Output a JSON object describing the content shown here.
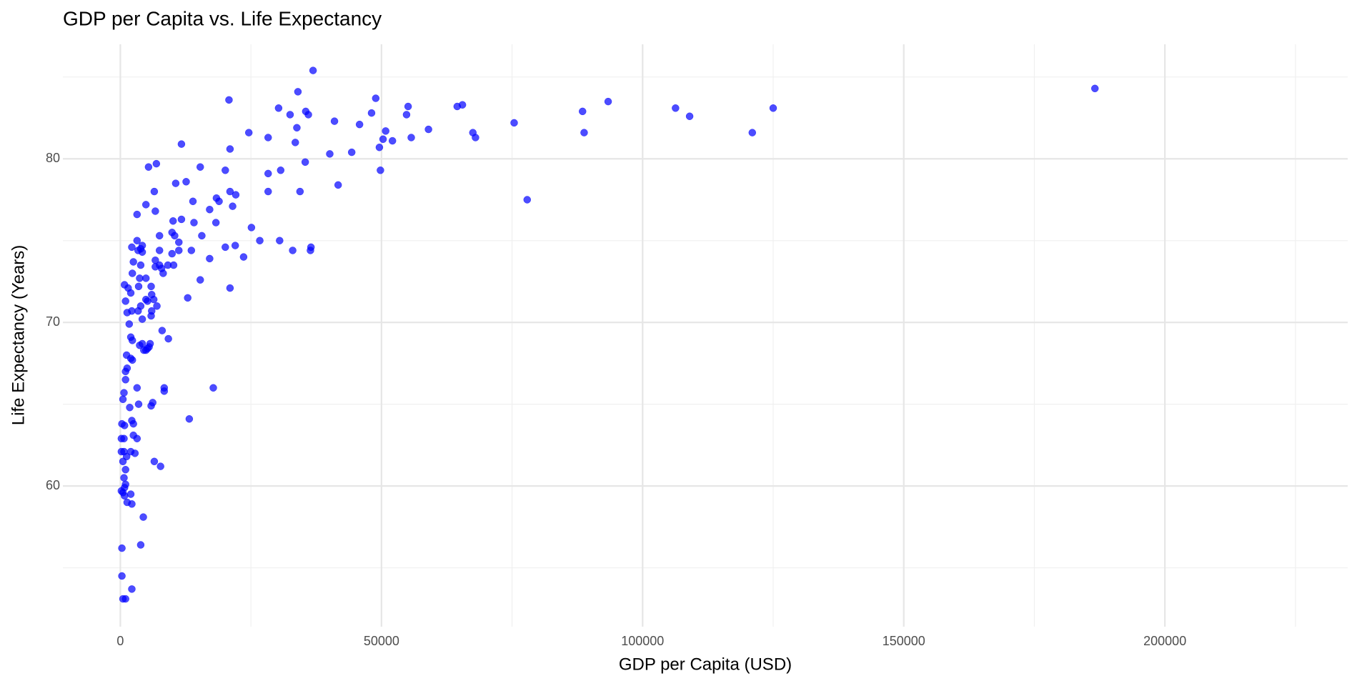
{
  "chart_data": {
    "type": "scatter",
    "title": "GDP per Capita vs. Life Expectancy",
    "x_label": "GDP per Capita (USD)",
    "y_label": "Life Expectancy (Years)",
    "color": "#0000ff",
    "opacity": 0.7,
    "grid": true,
    "xlim": [
      -11000,
      235000
    ],
    "ylim": [
      51.4,
      87.0
    ],
    "xticks": [
      0,
      50000,
      100000,
      150000,
      200000
    ],
    "yticks": [
      60,
      70,
      80
    ],
    "x_minor_ticks": [
      25000,
      75000,
      125000,
      175000,
      225000
    ],
    "y_minor_ticks": [
      55,
      65,
      75,
      85
    ],
    "x": [
      186600,
      121000,
      125000,
      106300,
      109000,
      93400,
      88500,
      88800,
      75400,
      77900,
      67500,
      68000,
      65500,
      64500,
      59000,
      55700,
      55100,
      54800,
      52100,
      50800,
      50300,
      49600,
      49800,
      48900,
      48100,
      45800,
      44300,
      41700,
      41000,
      40100,
      36900,
      36000,
      35500,
      35400,
      34000,
      33800,
      33500,
      34400,
      33000,
      32500,
      36500,
      36400,
      30300,
      30700,
      30500,
      28300,
      28300,
      28300,
      26700,
      25100,
      24600,
      23600,
      20800,
      21000,
      20100,
      21000,
      21500,
      22100,
      22000,
      20100,
      21000,
      18400,
      18900,
      18300,
      17100,
      17100,
      17800,
      15300,
      15600,
      15300,
      13900,
      14100,
      13600,
      12900,
      13200,
      12600,
      11700,
      11700,
      11200,
      11200,
      10600,
      10400,
      10100,
      9900,
      9900,
      10200,
      9200,
      9100,
      8200,
      7500,
      7500,
      7500,
      7900,
      8000,
      8400,
      8400,
      7700,
      6700,
      6700,
      7000,
      6700,
      6500,
      6900,
      5400,
      4900,
      6500,
      6200,
      5900,
      6000,
      6400,
      5900,
      6000,
      5900,
      5700,
      5200,
      5500,
      4900,
      4900,
      4900,
      5200,
      4200,
      4200,
      3900,
      3400,
      3200,
      3200,
      3900,
      3700,
      3500,
      3400,
      3900,
      4200,
      3700,
      4200,
      4500,
      3200,
      3500,
      4400,
      3900,
      2500,
      2200,
      2300,
      2000,
      2200,
      1700,
      2000,
      2300,
      2000,
      2300,
      1800,
      2200,
      2500,
      2500,
      2800,
      3200,
      2000,
      2000,
      2200,
      2200,
      1300,
      800,
      1500,
      1000,
      1300,
      1200,
      1300,
      1000,
      1000,
      700,
      500,
      800,
      300,
      200,
      700,
      700,
      200,
      1200,
      500,
      1000,
      700,
      1000,
      800,
      200,
      500,
      800,
      300,
      300,
      500,
      1000
    ],
    "values": [
      84.3,
      81.6,
      83.1,
      83.1,
      82.6,
      83.5,
      82.9,
      81.6,
      82.2,
      77.5,
      81.6,
      81.3,
      83.3,
      83.2,
      81.8,
      81.3,
      83.2,
      82.7,
      81.1,
      81.7,
      81.2,
      80.7,
      79.3,
      83.7,
      82.8,
      82.1,
      80.4,
      78.4,
      82.3,
      80.3,
      85.4,
      82.7,
      82.9,
      79.8,
      84.1,
      81.9,
      81.0,
      78.0,
      74.4,
      82.7,
      74.6,
      74.4,
      83.1,
      79.3,
      75.0,
      81.3,
      79.1,
      78.0,
      75.0,
      75.8,
      81.6,
      74.0,
      83.6,
      80.6,
      79.3,
      78.0,
      77.1,
      77.8,
      74.7,
      74.6,
      72.1,
      77.6,
      77.4,
      76.1,
      76.9,
      73.9,
      66.0,
      79.5,
      75.3,
      72.6,
      77.4,
      76.1,
      74.4,
      71.5,
      64.1,
      78.6,
      80.9,
      76.3,
      74.9,
      74.4,
      78.5,
      75.3,
      76.2,
      75.5,
      74.2,
      73.5,
      69.0,
      73.5,
      73.0,
      75.3,
      74.4,
      73.5,
      73.3,
      69.5,
      66.0,
      65.8,
      61.2,
      73.8,
      73.4,
      71.0,
      76.8,
      78.0,
      79.7,
      79.5,
      77.2,
      61.5,
      65.1,
      64.9,
      71.7,
      71.4,
      72.2,
      70.7,
      70.4,
      68.7,
      68.4,
      68.5,
      68.3,
      72.7,
      71.4,
      71.3,
      74.7,
      74.3,
      74.5,
      74.4,
      75.0,
      76.6,
      73.5,
      72.7,
      72.2,
      70.7,
      71.0,
      70.2,
      68.6,
      68.7,
      68.3,
      66.0,
      65.0,
      58.1,
      56.4,
      73.7,
      74.6,
      73.0,
      71.8,
      70.7,
      69.9,
      69.1,
      68.9,
      67.8,
      67.7,
      64.8,
      64.0,
      63.8,
      63.1,
      62.0,
      62.9,
      62.1,
      59.5,
      58.9,
      53.7,
      59.0,
      72.3,
      72.1,
      71.3,
      70.6,
      68.0,
      67.2,
      67.0,
      66.5,
      65.7,
      65.3,
      63.7,
      63.8,
      62.9,
      62.9,
      62.1,
      62.1,
      61.8,
      61.5,
      61.0,
      60.5,
      60.1,
      59.9,
      59.7,
      59.6,
      59.4,
      56.2,
      54.5,
      53.1,
      53.1
    ]
  }
}
